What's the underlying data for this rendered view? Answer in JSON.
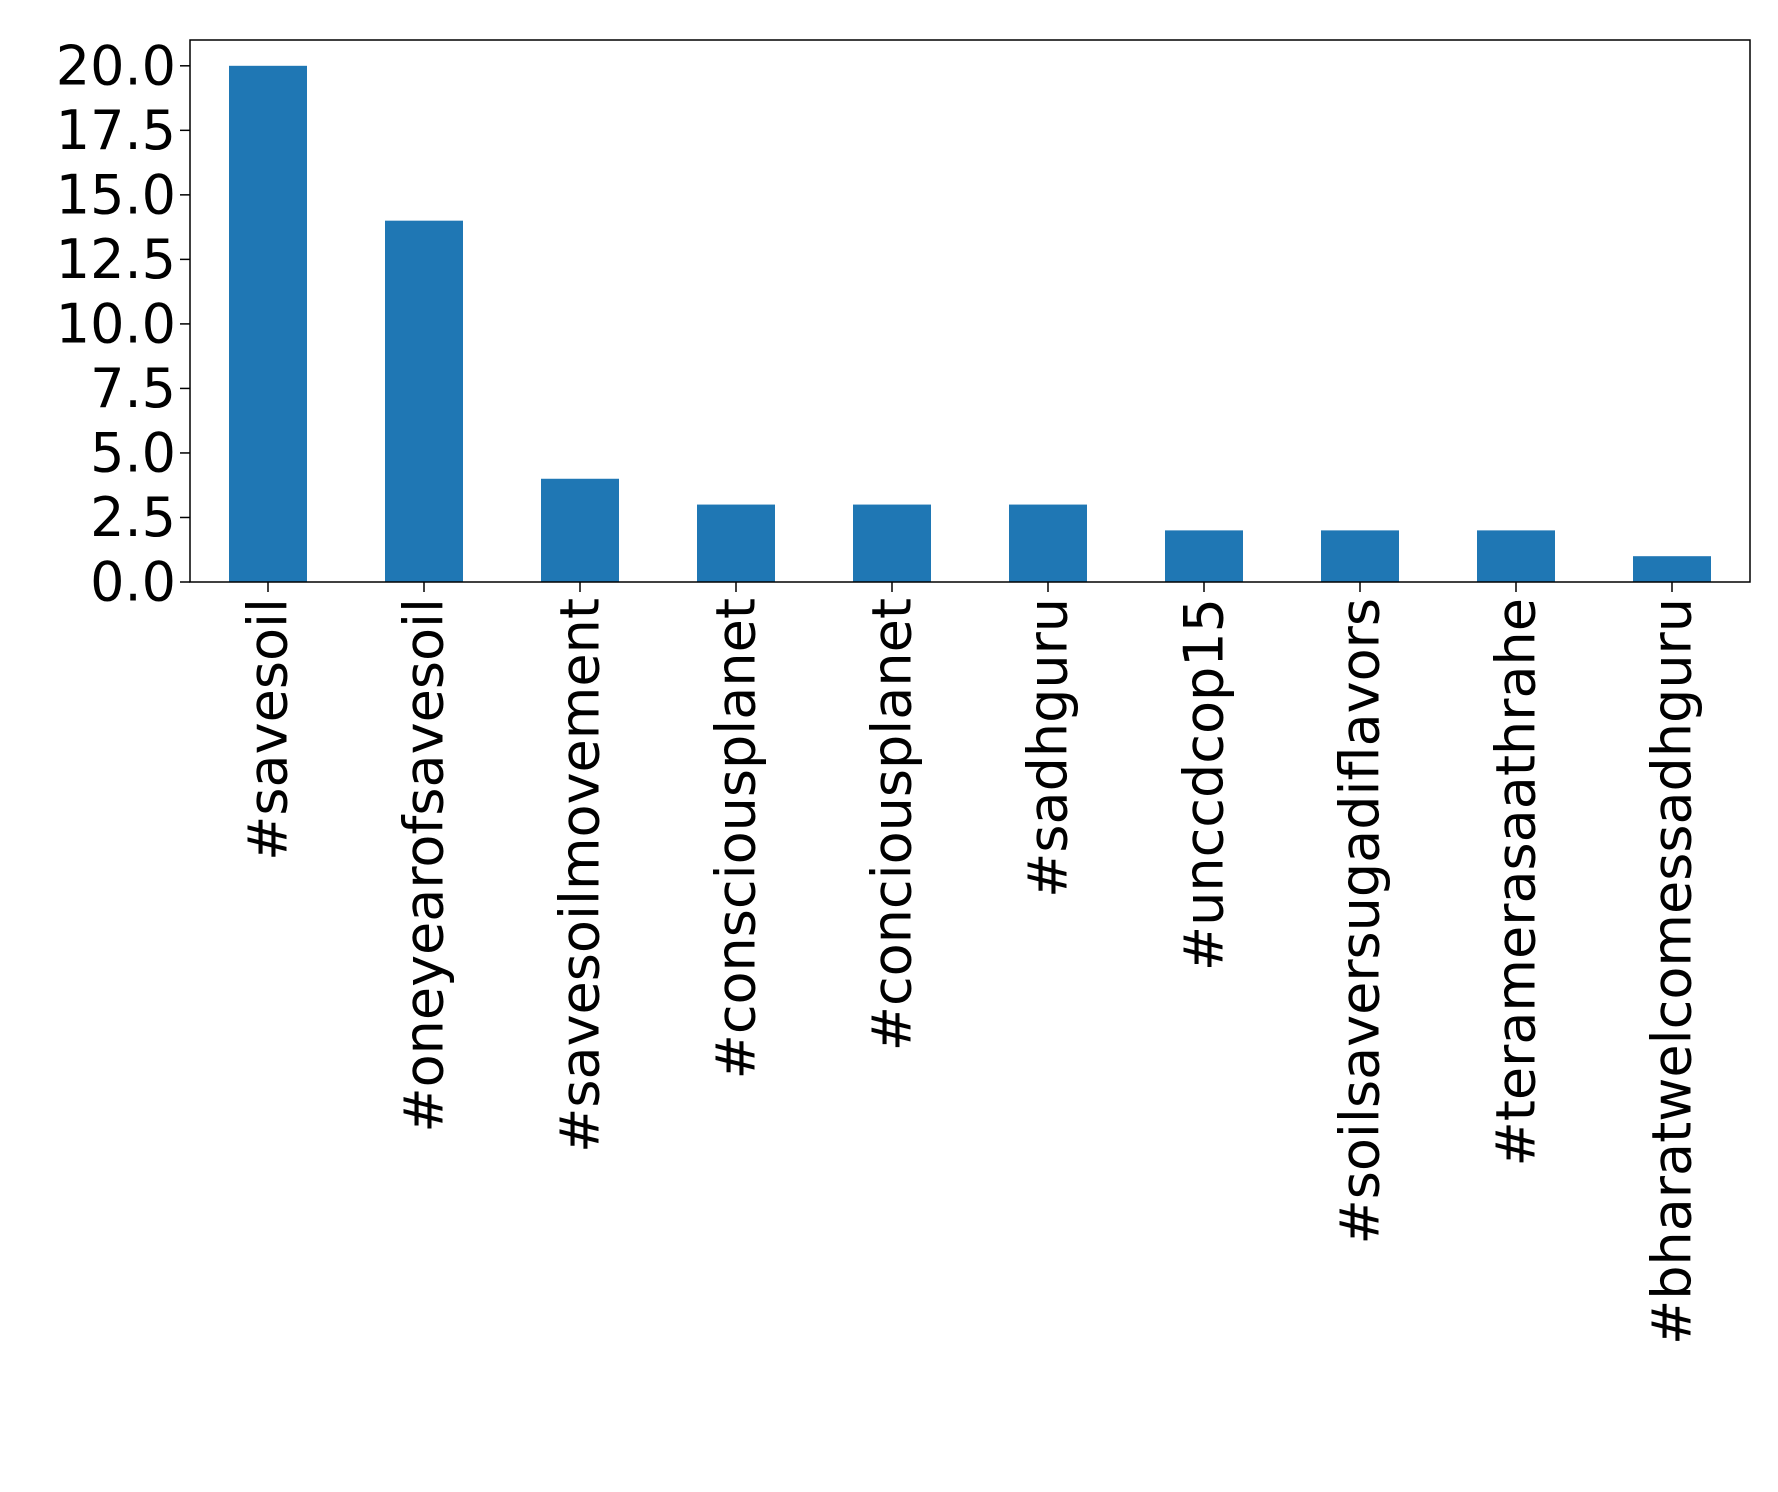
{
  "chart_data": {
    "type": "bar",
    "title": "",
    "xlabel": "",
    "ylabel": "",
    "categories": [
      "#savesoil",
      "#oneyearofsavesoil",
      "#savesoilmovement",
      "#consciousplanet",
      "#conciousplanet",
      "#sadhguru",
      "#unccdcop15",
      "#soilsaversugadiflavors",
      "#teramerasaathrahe",
      "#bharatwelcomessadhguru"
    ],
    "values": [
      20,
      14,
      4,
      3,
      3,
      3,
      2,
      2,
      2,
      1
    ],
    "ylim": [
      0,
      21
    ],
    "yticks": [
      "0.0",
      "2.5",
      "5.0",
      "7.5",
      "10.0",
      "12.5",
      "15.0",
      "17.5",
      "20.0"
    ],
    "grid": false,
    "bar_color": "#1f77b4"
  }
}
